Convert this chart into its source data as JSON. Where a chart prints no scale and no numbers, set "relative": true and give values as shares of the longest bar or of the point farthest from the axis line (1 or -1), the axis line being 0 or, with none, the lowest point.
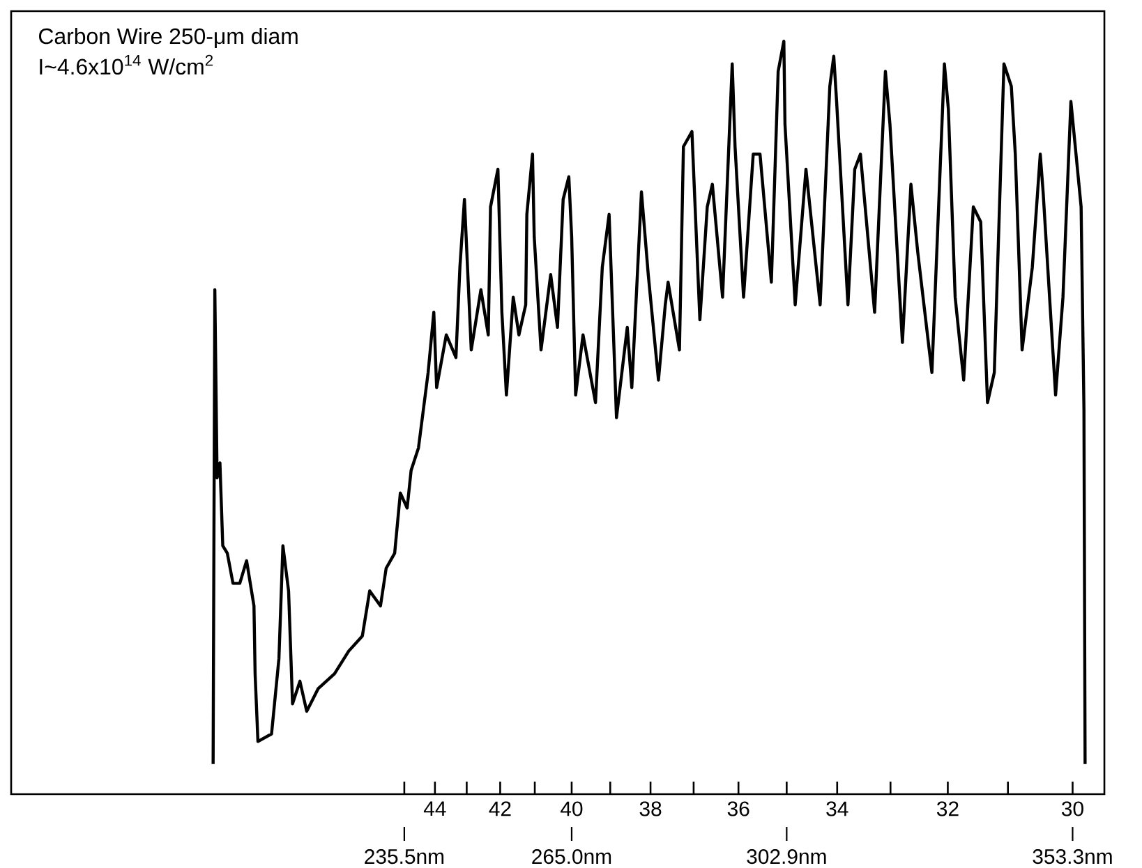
{
  "chart_data": {
    "type": "line",
    "title": "Carbon Wire 250-μm diam",
    "subtitle": "I~4.6x10$^{14}$ W/cm$^{2}$",
    "relative": true,
    "color": "#000000",
    "x": [
      201.8,
      202.1,
      202.5,
      203.0,
      203.5,
      204.3,
      205.3,
      206.5,
      207.7,
      209.0,
      209.2,
      209.7,
      212.1,
      213.4,
      214.1,
      215.1,
      215.8,
      217.1,
      218.3,
      220.3,
      223.2,
      225.7,
      228.1,
      229.4,
      231.3,
      232.3,
      233.8,
      234.8,
      236.0,
      236.7,
      238.0,
      239.7,
      240.7,
      241.2,
      242.9,
      244.6,
      245.3,
      246.1,
      247.3,
      249.0,
      250.3,
      250.7,
      252.0,
      252.7,
      253.5,
      254.7,
      255.7,
      256.9,
      257.1,
      258.1,
      258.4,
      259.6,
      261.3,
      262.5,
      263.5,
      264.5,
      265.0,
      265.7,
      267.0,
      269.2,
      270.4,
      271.6,
      272.9,
      274.8,
      275.6,
      277.3,
      278.5,
      280.3,
      281.5,
      282.0,
      284.0,
      284.7,
      286.2,
      287.6,
      288.9,
      289.8,
      291.6,
      293.3,
      293.8,
      295.3,
      297.0,
      298.2,
      300.2,
      301.4,
      302.4,
      302.6,
      304.4,
      306.3,
      308.8,
      310.5,
      311.2,
      311.7,
      313.7,
      314.9,
      315.9,
      318.4,
      320.3,
      321.1,
      323.3,
      324.8,
      326.0,
      328.5,
      330.7,
      331.4,
      332.6,
      334.1,
      335.8,
      337.1,
      338.3,
      339.5,
      341.2,
      342.5,
      343.2,
      344.4,
      346.2,
      347.6,
      348.1,
      350.3,
      351.6,
      353.0,
      354.8,
      355.3,
      355.5
    ],
    "values": [
      0.04,
      0.67,
      0.42,
      0.44,
      0.33,
      0.32,
      0.28,
      0.28,
      0.31,
      0.25,
      0.16,
      0.07,
      0.08,
      0.18,
      0.33,
      0.27,
      0.12,
      0.15,
      0.11,
      0.14,
      0.16,
      0.19,
      0.21,
      0.27,
      0.25,
      0.3,
      0.32,
      0.4,
      0.38,
      0.43,
      0.46,
      0.56,
      0.64,
      0.54,
      0.61,
      0.58,
      0.7,
      0.79,
      0.59,
      0.67,
      0.61,
      0.78,
      0.83,
      0.64,
      0.53,
      0.66,
      0.61,
      0.65,
      0.77,
      0.85,
      0.74,
      0.59,
      0.69,
      0.62,
      0.79,
      0.82,
      0.74,
      0.53,
      0.61,
      0.52,
      0.7,
      0.77,
      0.5,
      0.62,
      0.54,
      0.8,
      0.69,
      0.55,
      0.65,
      0.68,
      0.59,
      0.86,
      0.88,
      0.63,
      0.78,
      0.81,
      0.66,
      0.97,
      0.86,
      0.66,
      0.85,
      0.85,
      0.68,
      0.96,
      1.0,
      0.89,
      0.65,
      0.83,
      0.65,
      0.94,
      0.98,
      0.92,
      0.65,
      0.83,
      0.85,
      0.64,
      0.96,
      0.89,
      0.6,
      0.81,
      0.72,
      0.56,
      0.97,
      0.91,
      0.66,
      0.55,
      0.78,
      0.76,
      0.52,
      0.56,
      0.97,
      0.94,
      0.85,
      0.59,
      0.7,
      0.85,
      0.8,
      0.53,
      0.66,
      0.92,
      0.78,
      0.51,
      0.04
    ],
    "xlim": [
      166.2,
      358.9
    ],
    "xticks": [
      {
        "value": 235.5,
        "label": "235.5nm"
      },
      {
        "value": 240.9,
        "label": null
      },
      {
        "value": 246.5,
        "label": null
      },
      {
        "value": 252.4,
        "label": null
      },
      {
        "value": 258.5,
        "label": null
      },
      {
        "value": 265.0,
        "label": "265.0nm"
      },
      {
        "value": 271.8,
        "label": null
      },
      {
        "value": 278.9,
        "label": null
      },
      {
        "value": 286.5,
        "label": null
      },
      {
        "value": 294.4,
        "label": null
      },
      {
        "value": 302.9,
        "label": "302.9nm"
      },
      {
        "value": 311.8,
        "label": null
      },
      {
        "value": 321.2,
        "label": null
      },
      {
        "value": 331.3,
        "label": null
      },
      {
        "value": 341.9,
        "label": null
      },
      {
        "value": 353.3,
        "label": "353.3nm"
      }
    ],
    "annotations": [
      "44",
      "42",
      "40",
      "38",
      "36",
      "34",
      "32",
      "30"
    ]
  }
}
